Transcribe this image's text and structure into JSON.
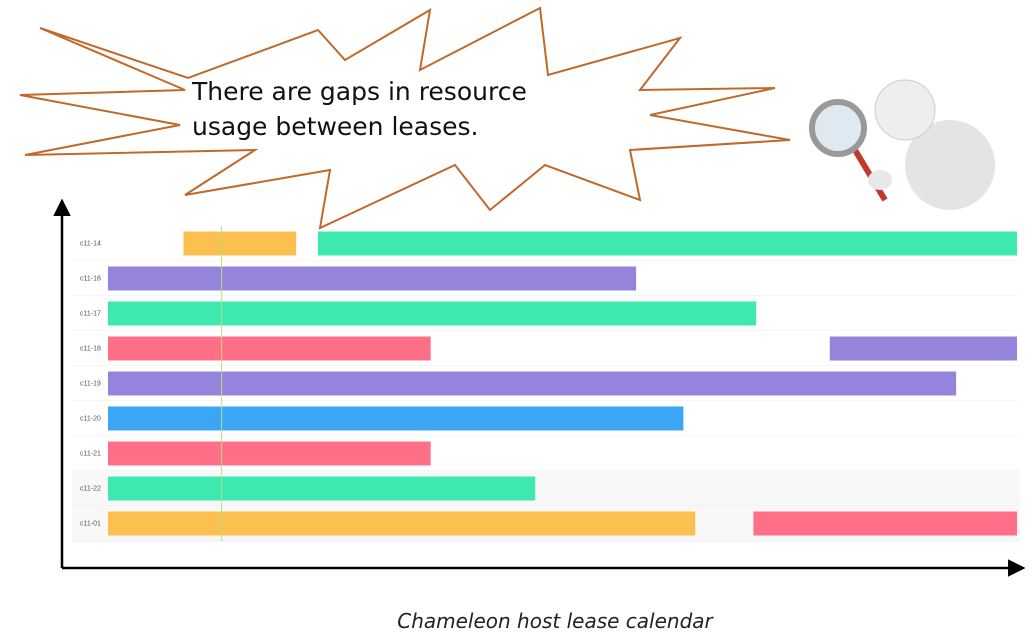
{
  "chart_data": {
    "type": "gantt",
    "annotation": [
      "There are gaps in resource",
      "usage between leases."
    ],
    "caption": "Chameleon host lease calendar",
    "xlim": [
      0,
      100
    ],
    "marker": 12.5,
    "rows": [
      {
        "name": "c11-14",
        "leases": [
          {
            "start": 8.3,
            "end": 20.7,
            "color": "#fbc04f"
          },
          {
            "start": 23.1,
            "end": 100,
            "color": "#3ee8ae"
          }
        ]
      },
      {
        "name": "c11-16",
        "leases": [
          {
            "start": 0,
            "end": 58.1,
            "color": "#9683dc"
          }
        ]
      },
      {
        "name": "c11-17",
        "leases": [
          {
            "start": 0,
            "end": 71.3,
            "color": "#3ee8ae"
          }
        ]
      },
      {
        "name": "c11-18",
        "leases": [
          {
            "start": 0,
            "end": 35.5,
            "color": "#ff7088"
          },
          {
            "start": 79.4,
            "end": 100,
            "color": "#9683dc"
          }
        ]
      },
      {
        "name": "c11-19",
        "leases": [
          {
            "start": 0,
            "end": 93.3,
            "color": "#9683dc"
          }
        ]
      },
      {
        "name": "c11-20",
        "leases": [
          {
            "start": 0,
            "end": 63.3,
            "color": "#3aa6f5"
          }
        ]
      },
      {
        "name": "c11-21",
        "leases": [
          {
            "start": 0,
            "end": 35.5,
            "color": "#ff7088"
          }
        ]
      },
      {
        "name": "c11-22",
        "leases": [
          {
            "start": 0,
            "end": 47.0,
            "color": "#3ee8ae"
          }
        ]
      },
      {
        "name": "c11-01",
        "leases": [
          {
            "start": 0,
            "end": 64.6,
            "color": "#fbc04f"
          },
          {
            "start": 71.0,
            "end": 100,
            "color": "#ff7088"
          }
        ]
      }
    ]
  }
}
